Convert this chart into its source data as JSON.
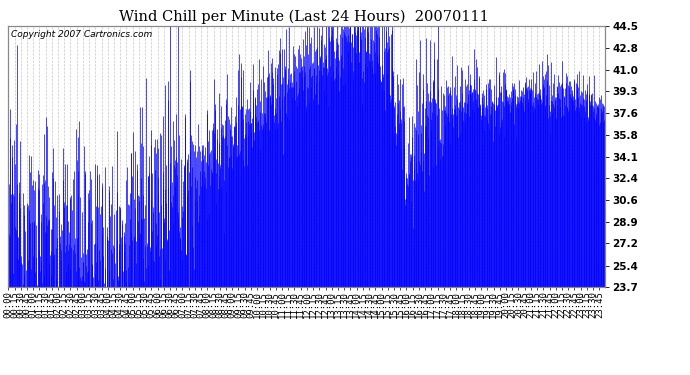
{
  "title": "Wind Chill per Minute (Last 24 Hours)  20070111",
  "copyright_text": "Copyright 2007 Cartronics.com",
  "line_color": "#0000FF",
  "background_color": "#FFFFFF",
  "plot_bg_color": "#FFFFFF",
  "grid_color": "#C8C8C8",
  "ylim": [
    23.7,
    44.5
  ],
  "yticks": [
    23.7,
    25.4,
    27.2,
    28.9,
    30.6,
    32.4,
    34.1,
    35.8,
    37.6,
    39.3,
    41.0,
    42.8,
    44.5
  ],
  "total_minutes": 1440,
  "title_fontsize": 10.5,
  "tick_fontsize": 6.5,
  "copyright_fontsize": 6.5
}
